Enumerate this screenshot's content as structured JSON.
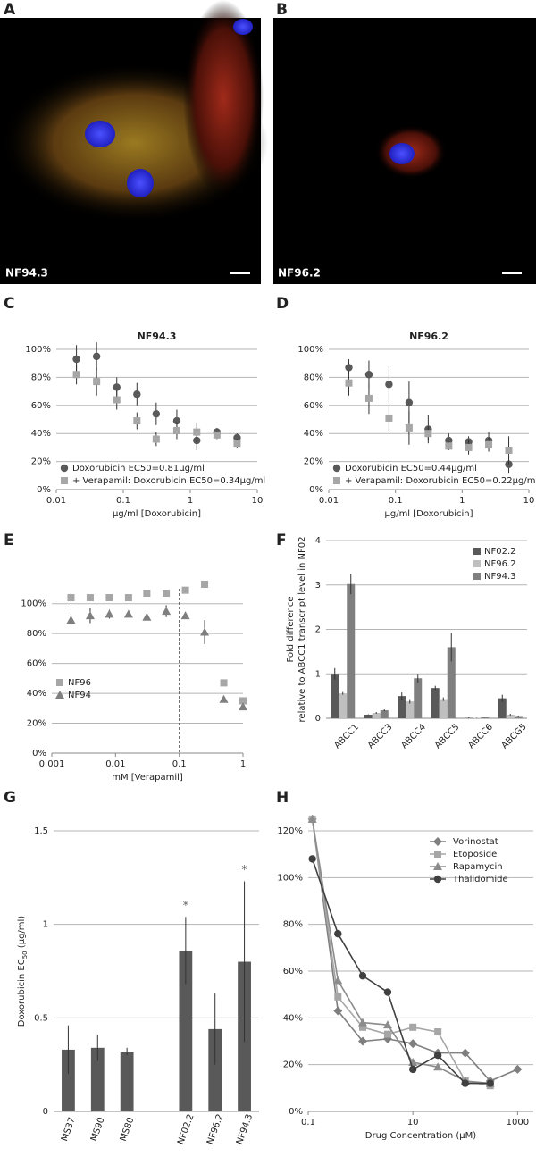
{
  "images": [
    {
      "panel": "A",
      "label": "NF94.3"
    },
    {
      "panel": "B",
      "label": "NF96.2"
    }
  ],
  "chart_data": [
    {
      "panel": "C",
      "type": "scatter",
      "title": "NF94.3",
      "xlabel": "µg/ml [Doxorubicin]",
      "log_x": true,
      "grid": true,
      "legend": "lower left",
      "x": [
        0.02,
        0.04,
        0.08,
        0.16,
        0.31,
        0.63,
        1.25,
        2.5,
        5
      ],
      "xlim": [
        0.01,
        10
      ],
      "xticks": [
        0.01,
        0.1,
        1,
        10
      ],
      "ylim": [
        0,
        100
      ],
      "yticks": [
        {
          "value": 0,
          "label": "0%"
        },
        {
          "value": 20,
          "label": "20%"
        },
        {
          "value": 40,
          "label": "40%"
        },
        {
          "value": 60,
          "label": "60%"
        },
        {
          "value": 80,
          "label": "80%"
        },
        {
          "value": 100,
          "label": "100%"
        }
      ],
      "series": [
        {
          "name": "Doxorubicin EC50=0.81µg/ml",
          "color": "#595959",
          "marker": "circle",
          "values": [
            93,
            95,
            73,
            68,
            54,
            49,
            35,
            41,
            37
          ],
          "errors": [
            10,
            10,
            7,
            8,
            8,
            8,
            7,
            3,
            3
          ]
        },
        {
          "name": "+ Verapamil: Doxorubicin  EC50=0.34µg/ml",
          "color": "#a6a6a6",
          "marker": "square",
          "values": [
            82,
            77,
            64,
            49,
            36,
            42,
            41,
            39,
            33
          ],
          "errors": [
            7,
            10,
            7,
            6,
            5,
            6,
            7,
            3,
            3
          ]
        }
      ]
    },
    {
      "panel": "D",
      "type": "scatter",
      "title": "NF96.2",
      "xlabel": "µg/ml [Doxorubicin]",
      "log_x": true,
      "grid": true,
      "legend": "lower left",
      "x": [
        0.02,
        0.04,
        0.08,
        0.16,
        0.31,
        0.63,
        1.25,
        2.5,
        5
      ],
      "xlim": [
        0.01,
        10
      ],
      "xticks": [
        0.01,
        0.1,
        1,
        10
      ],
      "ylim": [
        0,
        100
      ],
      "yticks": [
        {
          "value": 0,
          "label": "0%"
        },
        {
          "value": 20,
          "label": "20%"
        },
        {
          "value": 40,
          "label": "40%"
        },
        {
          "value": 60,
          "label": "60%"
        },
        {
          "value": 80,
          "label": "80%"
        },
        {
          "value": 100,
          "label": "100%"
        }
      ],
      "series": [
        {
          "name": "Doxorubicin EC50=0.44µg/ml",
          "color": "#595959",
          "marker": "circle",
          "values": [
            87,
            82,
            75,
            62,
            43,
            35,
            34,
            35,
            18
          ],
          "errors": [
            6,
            10,
            13,
            15,
            10,
            5,
            4,
            6,
            6
          ]
        },
        {
          "name": "+ Verapamil: Doxorubicin  EC50=0.22µg/ml",
          "color": "#a6a6a6",
          "marker": "square",
          "values": [
            76,
            65,
            51,
            44,
            40,
            31,
            30,
            32,
            28
          ],
          "errors": [
            9,
            11,
            9,
            12,
            5,
            3,
            5,
            5,
            10
          ]
        }
      ]
    },
    {
      "panel": "E",
      "type": "scatter",
      "xlabel": "mM [Verapamil]",
      "log_x": true,
      "grid": true,
      "legend": "lower left",
      "vline": 0.1,
      "x": [
        0.002,
        0.004,
        0.008,
        0.016,
        0.031,
        0.0625,
        0.125,
        0.25,
        0.5,
        1
      ],
      "xlim": [
        0.001,
        1
      ],
      "xticks": [
        0.001,
        0.01,
        0.1,
        1
      ],
      "ylim": [
        0,
        110
      ],
      "yticks": [
        {
          "value": 0,
          "label": "0%"
        },
        {
          "value": 20,
          "label": "20%"
        },
        {
          "value": 40,
          "label": "40%"
        },
        {
          "value": 60,
          "label": "60%"
        },
        {
          "value": 80,
          "label": "80%"
        },
        {
          "value": 100,
          "label": "100%"
        }
      ],
      "series": [
        {
          "name": "NF96",
          "color": "#a6a6a6",
          "marker": "square",
          "values": [
            104,
            104,
            104,
            104,
            107,
            107,
            109,
            113,
            47,
            35
          ],
          "errors": [
            3,
            1,
            1,
            1,
            1,
            1,
            2,
            1,
            1,
            2
          ]
        },
        {
          "name": "NF94",
          "color": "#7f7f7f",
          "marker": "triangle",
          "values": [
            89,
            92,
            93,
            93,
            91,
            95,
            92,
            81,
            36,
            31
          ],
          "errors": [
            4,
            5,
            3,
            2,
            2,
            4,
            2,
            8,
            2,
            2
          ]
        }
      ]
    },
    {
      "panel": "F",
      "type": "grouped_bar",
      "ylabel": [
        "Fold difference",
        "relative to ABCC1 transcript level in NF02"
      ],
      "grid": true,
      "legend": "upper right",
      "categories": [
        "ABCC1",
        "ABCC3",
        "ABCC4",
        "ABCC5",
        "ABCC6",
        "ABCG5"
      ],
      "ylim": [
        0,
        4
      ],
      "yticks": [
        0,
        1,
        2,
        3,
        4
      ],
      "series": [
        {
          "name": "NF02.2",
          "color": "#595959",
          "values": [
            1.0,
            0.08,
            0.5,
            0.68,
            0.01,
            0.45
          ],
          "errors": [
            0.13,
            0.01,
            0.08,
            0.05,
            0.01,
            0.08
          ]
        },
        {
          "name": "NF96.2",
          "color": "#bfbfbf",
          "values": [
            0.56,
            0.12,
            0.38,
            0.43,
            0.01,
            0.08
          ],
          "errors": [
            0.03,
            0.02,
            0.05,
            0.04,
            0.005,
            0.02
          ]
        },
        {
          "name": "NF94.3",
          "color": "#7f7f7f",
          "values": [
            3.02,
            0.18,
            0.9,
            1.6,
            0.02,
            0.05
          ],
          "errors": [
            0.23,
            0.02,
            0.1,
            0.32,
            0.005,
            0.01
          ]
        }
      ]
    },
    {
      "panel": "G",
      "type": "bar",
      "ylabel": [
        "Doxorubicin EC",
        "50",
        " (µg/ml)"
      ],
      "grid": true,
      "color": "#595959",
      "categories": [
        "MS37",
        "MS90",
        "MS80",
        null,
        "NF02.2",
        "NF96.2",
        "NF94.3"
      ],
      "values": [
        0.33,
        0.34,
        0.32,
        null,
        0.86,
        0.44,
        0.8
      ],
      "errors": [
        0.13,
        0.07,
        0.02,
        null,
        0.18,
        0.19,
        0.43
      ],
      "markers": [
        null,
        null,
        null,
        null,
        "*",
        null,
        "*"
      ],
      "ylim": [
        0,
        1.5
      ],
      "yticks": [
        0,
        0.5,
        1,
        1.5
      ]
    },
    {
      "panel": "H",
      "type": "line",
      "xlabel": "Drug Concentration (µM)",
      "log_x": true,
      "grid": true,
      "legend": "upper right",
      "x": [
        0.12,
        0.37,
        1.1,
        3.3,
        10,
        30,
        100,
        300,
        1000
      ],
      "xlim": [
        0.1,
        2000
      ],
      "xticks": [
        0.1,
        10,
        1000
      ],
      "ylim": [
        0,
        120
      ],
      "yticks": [
        {
          "value": 0,
          "label": "0%"
        },
        {
          "value": 20,
          "label": "20%"
        },
        {
          "value": 40,
          "label": "40%"
        },
        {
          "value": 60,
          "label": "60%"
        },
        {
          "value": 80,
          "label": "80%"
        },
        {
          "value": 100,
          "label": "100%"
        },
        {
          "value": 120,
          "label": "120%"
        }
      ],
      "series": [
        {
          "name": "Vorinostat",
          "color": "#7f7f7f",
          "marker": "diamond",
          "values": [
            125,
            43,
            30,
            31,
            29,
            25,
            25,
            13,
            18
          ]
        },
        {
          "name": "Etoposide",
          "color": "#a6a6a6",
          "marker": "square",
          "values": [
            125,
            49,
            36,
            33,
            36,
            34,
            13,
            11,
            null
          ]
        },
        {
          "name": "Rapamycin",
          "color": "#8c8c8c",
          "marker": "triangle",
          "values": [
            125,
            56,
            38,
            37,
            21,
            19,
            13,
            12,
            null
          ]
        },
        {
          "name": "Thalidomide",
          "color": "#404040",
          "marker": "circle",
          "values": [
            108,
            76,
            58,
            51,
            18,
            24,
            12,
            12,
            null
          ]
        }
      ]
    }
  ]
}
